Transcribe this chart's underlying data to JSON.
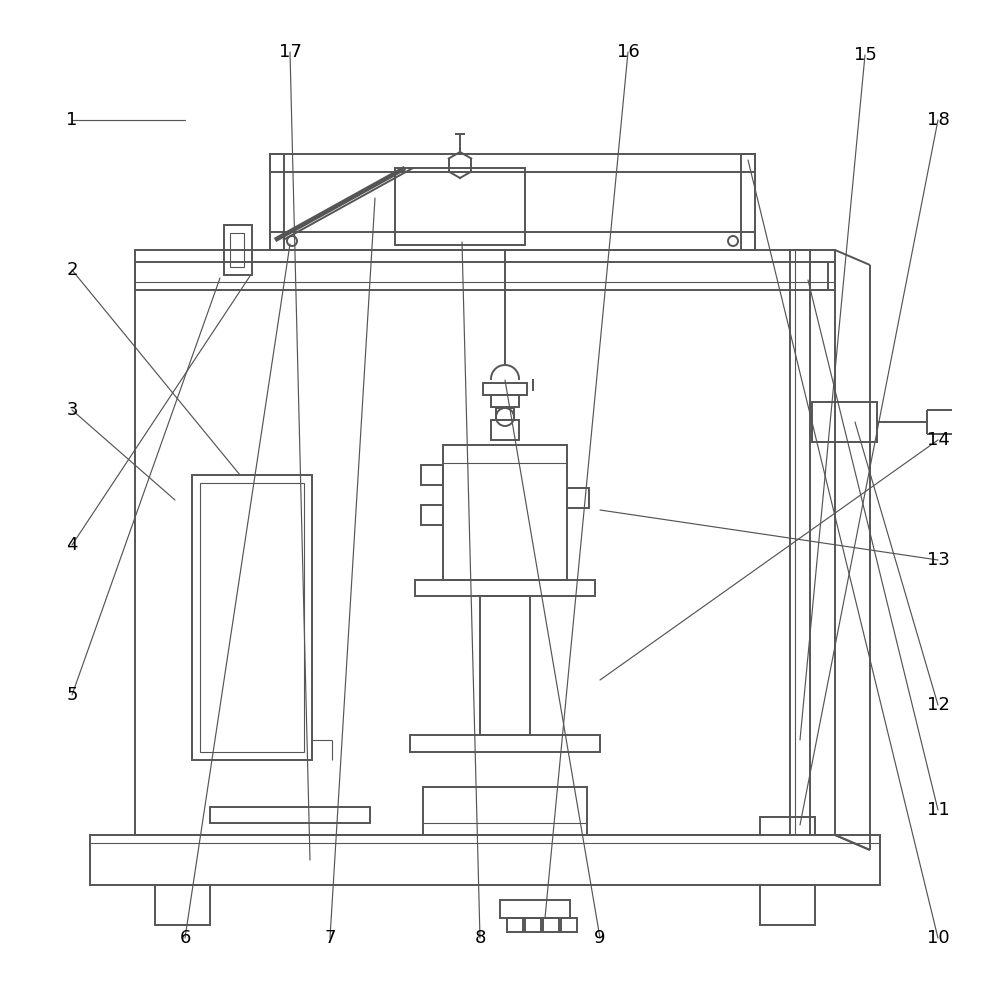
{
  "bg_color": "#ffffff",
  "lc": "#555555",
  "lw": 1.4,
  "tlw": 0.8,
  "label_fontsize": 13,
  "label_color": "#000000"
}
